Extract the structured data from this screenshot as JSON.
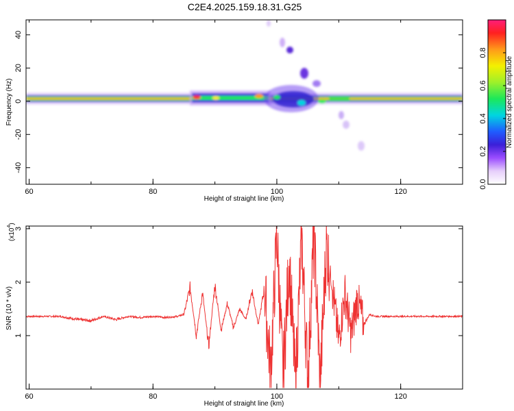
{
  "title": "C2E4.2025.159.18.31.G25",
  "chart_data": [
    {
      "type": "heatmap",
      "xlabel": "Height of straight line (km)",
      "ylabel": "Frequency (Hz)",
      "xlim": [
        59.5,
        130
      ],
      "ylim": [
        -50,
        49
      ],
      "xticks": [
        "60",
        "80",
        "100",
        "120"
      ],
      "yticks": [
        "40",
        "20",
        "0",
        "-20",
        "-40"
      ],
      "colorbar": {
        "label": "Normalized spectral amplitude",
        "range": [
          0,
          1
        ],
        "ticks": [
          "0.0",
          "0.2",
          "0.4",
          "0.6",
          "0.8"
        ]
      },
      "features": [
        {
          "x0": 60,
          "x1": 130,
          "y_center": 1.5,
          "band_level": 0.9,
          "description_values": [
            0.9
          ]
        },
        {
          "x0": 86,
          "x1": 108,
          "y_min": -8,
          "y_max": 9,
          "peak_level": 0.55
        },
        {
          "x0": 99,
          "x1": 112,
          "y_start": 46,
          "y_end": -30,
          "peak_level": 0.25
        }
      ]
    },
    {
      "type": "line",
      "xlabel": "Height of straight line (km)",
      "ylabel": "SNR (10 * v/v)",
      "multiplier_label": "(x10",
      "multiplier_exp": "4",
      "multiplier_close": ")",
      "xlim": [
        59.5,
        130
      ],
      "ylim": [
        0,
        3.05
      ],
      "xticks": [
        "60",
        "80",
        "100",
        "120"
      ],
      "yticks": [
        "1",
        "2",
        "3"
      ],
      "baseline": 1.36,
      "series": [
        {
          "color": "#ee3333",
          "x": [
            60,
            65,
            68,
            70,
            72,
            74,
            76,
            78,
            80,
            82,
            84,
            85,
            86,
            87,
            88,
            89,
            90,
            91,
            92,
            93,
            94,
            95,
            96,
            97,
            98,
            99,
            100,
            101,
            102,
            103,
            104,
            105,
            106,
            107,
            108,
            109,
            110,
            111,
            112,
            113,
            114,
            115,
            116,
            120,
            125,
            130
          ],
          "values": [
            1.36,
            1.36,
            1.3,
            1.28,
            1.36,
            1.3,
            1.36,
            1.34,
            1.36,
            1.34,
            1.36,
            1.4,
            1.9,
            1.0,
            1.8,
            0.8,
            1.95,
            1.1,
            1.6,
            1.15,
            1.5,
            1.3,
            1.85,
            1.2,
            1.9,
            0.3,
            2.9,
            0.2,
            2.4,
            0.1,
            2.85,
            0.2,
            2.95,
            0.1,
            2.7,
            1.85,
            0.9,
            1.8,
            1.0,
            1.7,
            1.2,
            1.4,
            1.36,
            1.36,
            1.36,
            1.36
          ]
        }
      ]
    }
  ]
}
